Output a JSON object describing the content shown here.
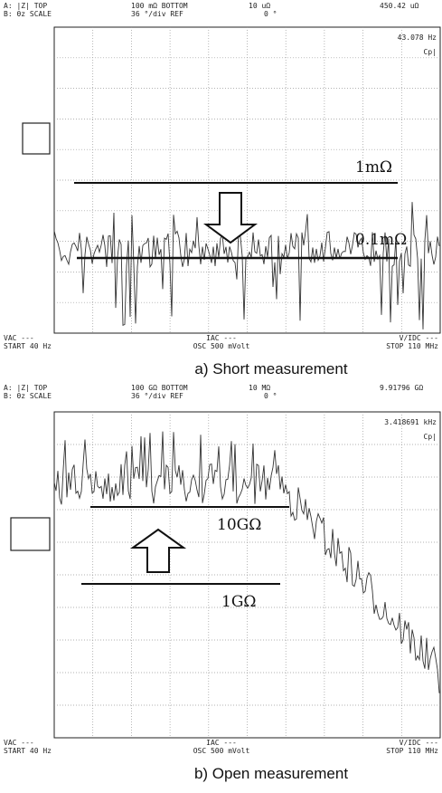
{
  "panels": [
    {
      "header": {
        "line1": [
          "A: |Z|  TOP",
          "100 mΩ BOTTOM",
          "10 uΩ",
          "450.42 uΩ"
        ],
        "line2": [
          "B: θz  SCALE",
          "36 °/div REF",
          "0 °"
        ]
      },
      "readout": [
        "43.078 Hz",
        "Cp|"
      ],
      "annotations": [
        "1mΩ",
        "0.1mΩ"
      ],
      "footer": {
        "left": [
          "VAC ---",
          "START 40 Hz"
        ],
        "center": [
          "IAC ---",
          "OSC 500 mVolt"
        ],
        "right": [
          "V/IDC ---",
          "STOP 110 MHz"
        ]
      },
      "caption": "a) Short measurement"
    },
    {
      "header": {
        "line1": [
          "A: |Z|  TOP",
          "100 GΩ BOTTOM",
          "10 MΩ",
          "9.91796 GΩ"
        ],
        "line2": [
          "B: θz  SCALE",
          "36 °/div REF",
          "0 °"
        ]
      },
      "readout": [
        "3.418691 kHz",
        "Cp|"
      ],
      "annotations": [
        "10GΩ",
        "1GΩ"
      ],
      "footer": {
        "left": [
          "VAC ---",
          "START 40 Hz"
        ],
        "center": [
          "IAC ---",
          "OSC 500 mVolt"
        ],
        "right": [
          "V/IDC ---",
          "STOP 110 MHz"
        ]
      },
      "caption": "b) Open measurement"
    }
  ]
}
